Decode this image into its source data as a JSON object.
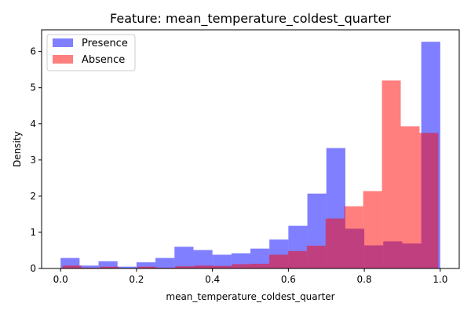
{
  "chart_data": {
    "type": "bar",
    "title": "Feature: mean_temperature_coldest_quarter",
    "xlabel": "mean_temperature_coldest_quarter",
    "ylabel": "Density",
    "xlim": [
      -0.05,
      1.05
    ],
    "ylim": [
      0,
      6.6
    ],
    "xticks": [
      "0.0",
      "0.2",
      "0.4",
      "0.6",
      "0.8",
      "1.0"
    ],
    "xtick_values": [
      0.0,
      0.2,
      0.4,
      0.6,
      0.8,
      1.0
    ],
    "yticks": [
      "0",
      "1",
      "2",
      "3",
      "4",
      "5",
      "6"
    ],
    "ytick_values": [
      0,
      1,
      2,
      3,
      4,
      5,
      6
    ],
    "legend_position": "upper-left",
    "grid": false,
    "series": [
      {
        "name": "Presence",
        "color": "#0000ff",
        "opacity": 0.5,
        "bin_edges": [
          0.0,
          0.05,
          0.1,
          0.15,
          0.2,
          0.25,
          0.3,
          0.35,
          0.4,
          0.45,
          0.5,
          0.55,
          0.6,
          0.65,
          0.7,
          0.75,
          0.8,
          0.85,
          0.9,
          0.95,
          1.0
        ],
        "values": [
          0.29,
          0.08,
          0.2,
          0.05,
          0.17,
          0.29,
          0.6,
          0.51,
          0.38,
          0.42,
          0.55,
          0.8,
          1.18,
          2.07,
          3.33,
          1.1,
          0.64,
          0.75,
          0.69,
          6.27
        ]
      },
      {
        "name": "Absence",
        "color": "#ff0000",
        "opacity": 0.5,
        "bin_edges": [
          0.005,
          0.0545,
          0.104,
          0.1535,
          0.203,
          0.2525,
          0.302,
          0.3515,
          0.401,
          0.4505,
          0.5,
          0.5495,
          0.599,
          0.6485,
          0.698,
          0.7475,
          0.797,
          0.8465,
          0.896,
          0.9455,
          0.995
        ],
        "values": [
          0.08,
          0.02,
          0.05,
          0.0,
          0.05,
          0.02,
          0.06,
          0.08,
          0.07,
          0.12,
          0.13,
          0.38,
          0.48,
          0.63,
          1.38,
          1.72,
          2.14,
          5.2,
          3.93,
          3.75
        ]
      }
    ]
  }
}
